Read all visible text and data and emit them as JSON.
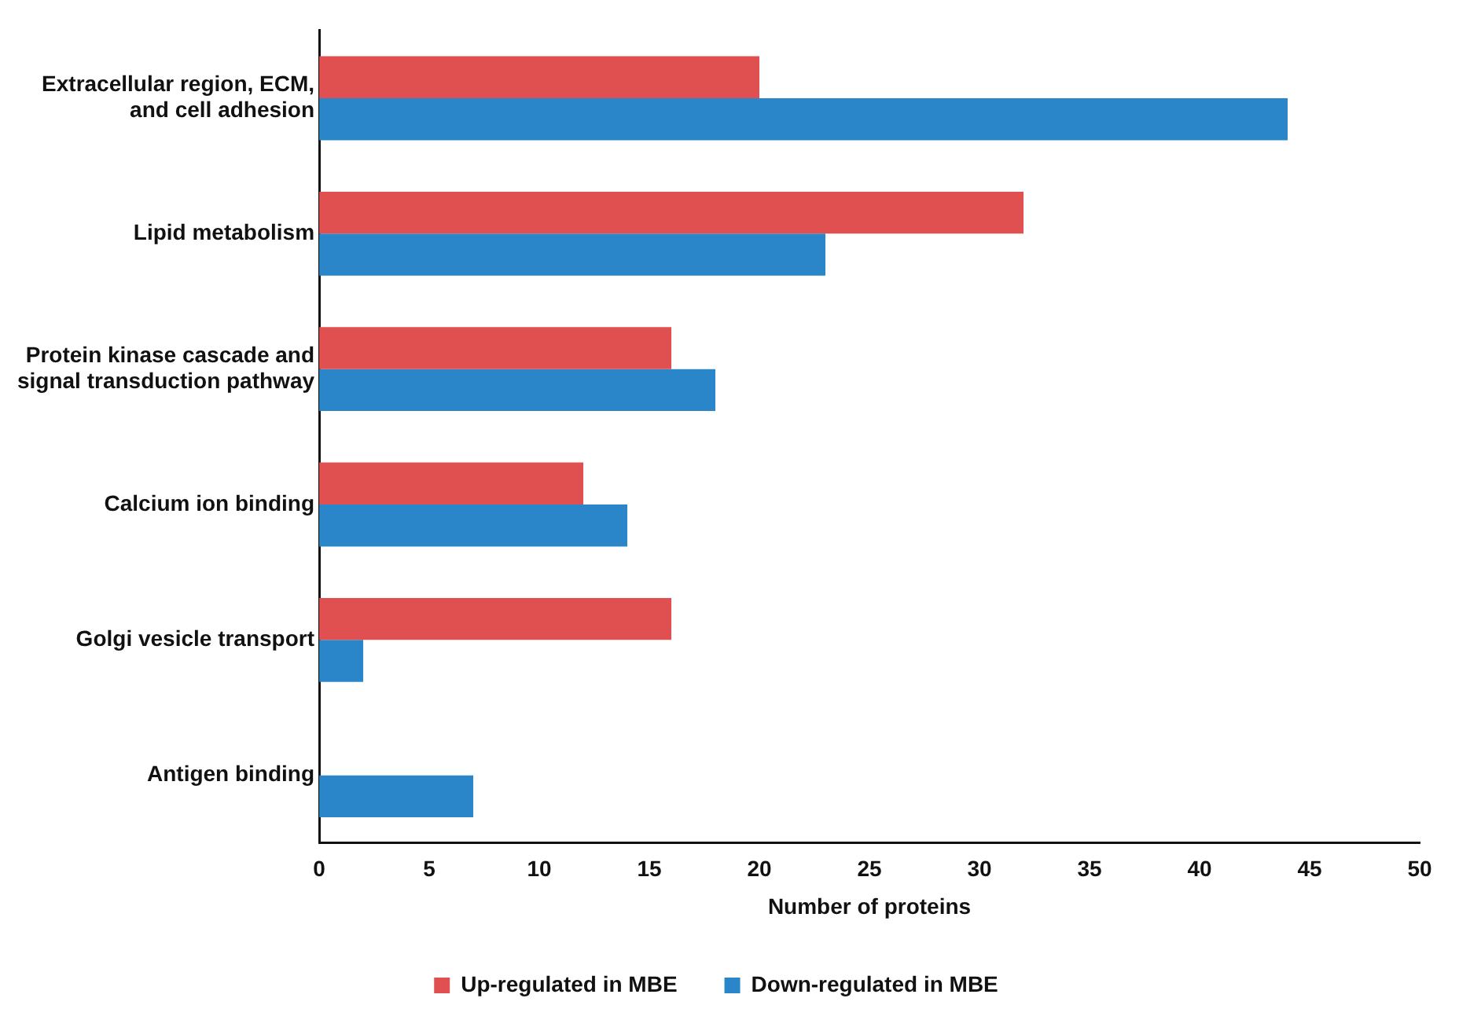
{
  "chart_data": {
    "type": "bar",
    "orientation": "horizontal",
    "xlabel": "Number of proteins",
    "categories": [
      "Extracellular region, ECM, and cell adhesion",
      "Lipid metabolism",
      "Protein kinase cascade and signal transduction pathway",
      "Calcium ion binding",
      "Golgi vesicle transport",
      "Antigen binding"
    ],
    "series": [
      {
        "name": "Up-regulated in MBE",
        "color": "#e05050",
        "values": [
          20,
          32,
          16,
          12,
          16,
          0
        ]
      },
      {
        "name": "Down-regulated in MBE",
        "color": "#2a86c8",
        "values": [
          44,
          23,
          18,
          14,
          2,
          7
        ]
      }
    ],
    "xlim": [
      0,
      50
    ],
    "xticks": [
      0,
      5,
      10,
      15,
      20,
      25,
      30,
      35,
      40,
      45,
      50
    ],
    "grid": false,
    "legend": "bottom"
  }
}
